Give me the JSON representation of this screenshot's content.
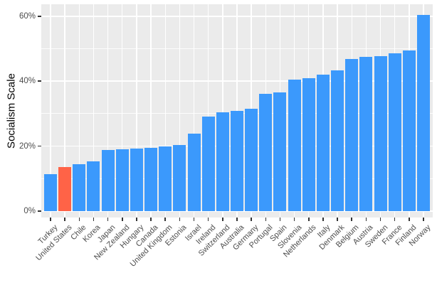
{
  "chart_data": {
    "type": "bar",
    "title": "",
    "xlabel": "",
    "ylabel": "Socialism Scale",
    "legend": "none",
    "x_tick_angle": 45,
    "categories": [
      "Turkey",
      "United States",
      "Chile",
      "Korea",
      "Japan",
      "New Zealand",
      "Hungary",
      "Canada",
      "United Kingdom",
      "Estonia",
      "Israel",
      "Ireland",
      "Switzerland",
      "Australia",
      "Germany",
      "Portugal",
      "Spain",
      "Slovenia",
      "Netherlands",
      "Italy",
      "Denmark",
      "Belgium",
      "Austria",
      "Sweden",
      "France",
      "Finland",
      "Norway"
    ],
    "values": [
      11.4,
      13.5,
      14.4,
      15.2,
      18.9,
      19.1,
      19.3,
      19.5,
      20.0,
      20.4,
      23.9,
      29.0,
      30.5,
      30.8,
      31.4,
      36.0,
      36.6,
      40.4,
      41.0,
      42.1,
      43.4,
      46.9,
      47.6,
      47.7,
      48.6,
      49.5,
      60.5
    ],
    "highlight_category": "United States",
    "y_axis": {
      "tick_labels": [
        "0%",
        "20%",
        "40%",
        "60%"
      ],
      "tick_values": [
        0,
        20,
        40,
        60
      ],
      "minor_tick_values": [
        10,
        30,
        50
      ],
      "range_shown": [
        -2,
        63.7
      ]
    },
    "colors": {
      "bar_default": "#3B99FC",
      "bar_highlight": "#FF6347",
      "panel_background": "#EBEBEB",
      "gridline": "#FFFFFF",
      "tick_label": "#4D4D4D",
      "axis_title": "#000000",
      "tick_mark": "#333333"
    }
  }
}
